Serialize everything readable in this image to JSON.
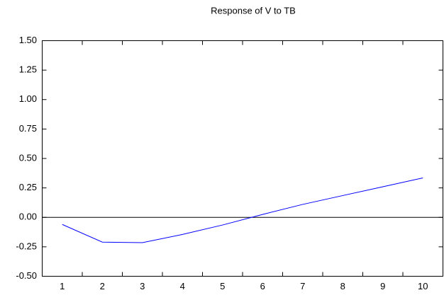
{
  "chart_data": {
    "type": "line",
    "title": "Response of V to TB",
    "categories": [
      "1",
      "2",
      "3",
      "4",
      "5",
      "6",
      "7",
      "8",
      "9",
      "10"
    ],
    "series": [
      {
        "name": "V to TB",
        "color": "#0000ff",
        "values": [
          -0.06,
          -0.21,
          -0.215,
          -0.145,
          -0.065,
          0.025,
          0.11,
          0.185,
          0.26,
          0.335
        ]
      }
    ],
    "ylim": [
      -0.5,
      1.5
    ],
    "yticks": [
      {
        "value": -0.5,
        "label": "-0.50"
      },
      {
        "value": -0.25,
        "label": "-0.25"
      },
      {
        "value": 0,
        "label": "0.00"
      },
      {
        "value": 0.25,
        "label": "0.25"
      },
      {
        "value": 0.5,
        "label": "0.50"
      },
      {
        "value": 0.75,
        "label": "0.75"
      },
      {
        "value": 1,
        "label": "1.00"
      },
      {
        "value": 1.25,
        "label": "1.25"
      },
      {
        "value": 1.5,
        "label": "1.50"
      }
    ],
    "zero_line": true
  }
}
